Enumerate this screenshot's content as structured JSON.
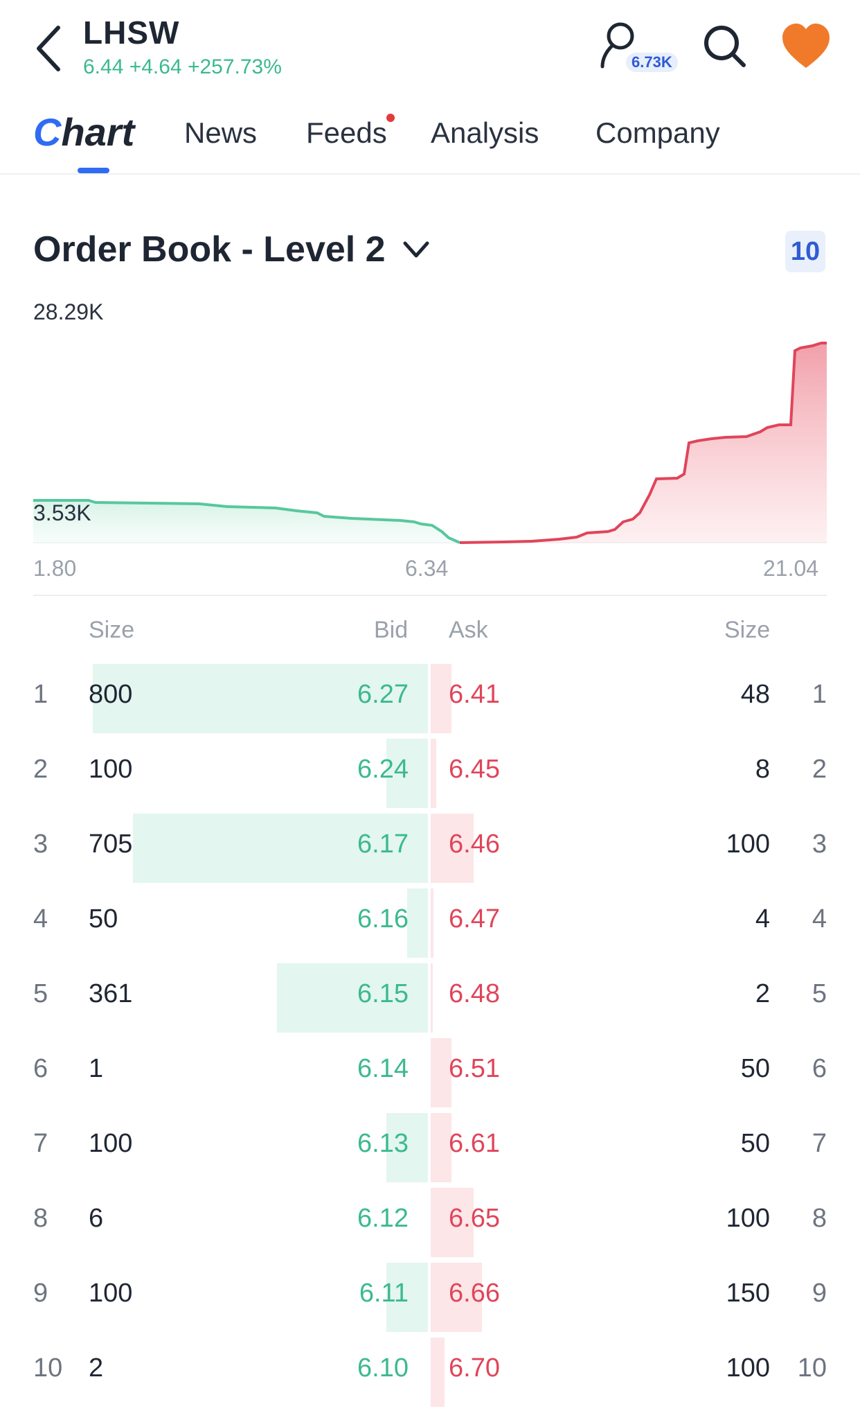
{
  "header": {
    "ticker": "LHSW",
    "quote": "6.44 +4.64 +257.73%",
    "followers_count": "6.73K"
  },
  "tabs": [
    {
      "label": "Chart",
      "first": "C",
      "rest": "hart",
      "active": true
    },
    {
      "label": "News"
    },
    {
      "label": "Feeds",
      "has_dot": true
    },
    {
      "label": "Analysis"
    },
    {
      "label": "Company"
    }
  ],
  "order_book": {
    "title": "Order Book - Level 2",
    "levels": "10",
    "chart": {
      "y_max_label": "28.29K",
      "y_mid_label": "3.53K",
      "x_left": "1.80",
      "x_center": "6.34",
      "x_right": "21.04"
    },
    "headers": {
      "size_left": "Size",
      "bid": "Bid",
      "ask": "Ask",
      "size_right": "Size"
    },
    "rows": [
      {
        "idx": "1",
        "bid_size": "800",
        "bid": "6.27",
        "ask": "6.41",
        "ask_size": "48"
      },
      {
        "idx": "2",
        "bid_size": "100",
        "bid": "6.24",
        "ask": "6.45",
        "ask_size": "8"
      },
      {
        "idx": "3",
        "bid_size": "705",
        "bid": "6.17",
        "ask": "6.46",
        "ask_size": "100"
      },
      {
        "idx": "4",
        "bid_size": "50",
        "bid": "6.16",
        "ask": "6.47",
        "ask_size": "4"
      },
      {
        "idx": "5",
        "bid_size": "361",
        "bid": "6.15",
        "ask": "6.48",
        "ask_size": "2"
      },
      {
        "idx": "6",
        "bid_size": "1",
        "bid": "6.14",
        "ask": "6.51",
        "ask_size": "50"
      },
      {
        "idx": "7",
        "bid_size": "100",
        "bid": "6.13",
        "ask": "6.61",
        "ask_size": "50"
      },
      {
        "idx": "8",
        "bid_size": "6",
        "bid": "6.12",
        "ask": "6.65",
        "ask_size": "100"
      },
      {
        "idx": "9",
        "bid_size": "100",
        "bid": "6.11",
        "ask": "6.66",
        "ask_size": "150"
      },
      {
        "idx": "10",
        "bid_size": "2",
        "bid": "6.10",
        "ask": "6.70",
        "ask_size": "100"
      }
    ]
  },
  "colors": {
    "bid": "#3bb98f",
    "ask": "#e0455a",
    "accent": "#2f6bf3",
    "heart": "#f07a2a"
  }
}
